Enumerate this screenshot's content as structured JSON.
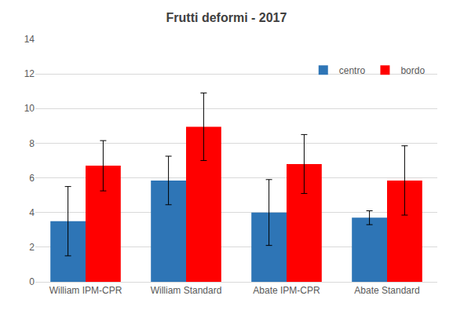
{
  "chart_data": {
    "type": "bar",
    "title": "Frutti deformi - 2017",
    "categories": [
      "William IPM-CPR",
      "William Standard",
      "Abate IPM-CPR",
      "Abate Standard"
    ],
    "series": [
      {
        "name": "centro",
        "color": "#2e75b6",
        "values": [
          3.5,
          5.85,
          4.0,
          3.7
        ],
        "errors": [
          2.0,
          1.4,
          1.9,
          0.4
        ]
      },
      {
        "name": "bordo",
        "color": "#ff0000",
        "values": [
          6.7,
          8.95,
          6.8,
          5.85
        ],
        "errors": [
          1.45,
          1.95,
          1.7,
          2.0
        ]
      }
    ],
    "ylim": [
      0,
      14
    ],
    "yticks": [
      0,
      2,
      4,
      6,
      8,
      10,
      12,
      14
    ],
    "grid": true,
    "legend": "top right"
  }
}
